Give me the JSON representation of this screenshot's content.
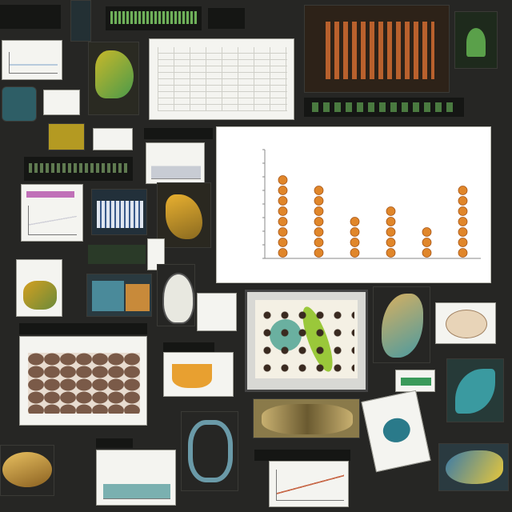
{
  "chart_data": {
    "type": "scatter",
    "title": "",
    "xlabel": "",
    "ylabel": "",
    "categories": [
      "",
      "",
      "",
      "",
      "",
      ""
    ],
    "values": [
      6,
      5,
      3,
      4,
      2,
      5
    ],
    "ylim": [
      0,
      8
    ],
    "marker_color": "#e0862a"
  },
  "colors": {
    "background": "#262624",
    "accent_green": "#7fbf6a",
    "accent_orange": "#e0862a"
  }
}
